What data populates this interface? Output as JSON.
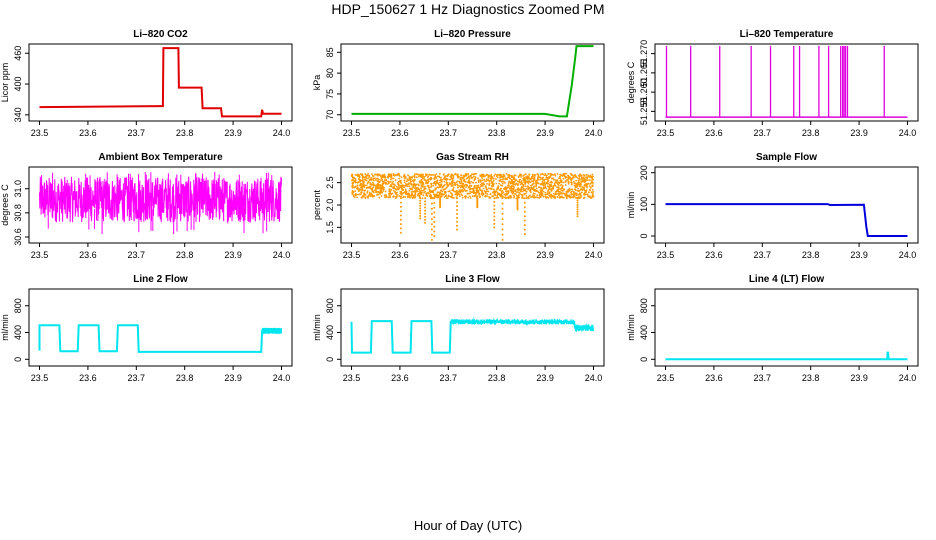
{
  "figure": {
    "title": "HDP_150627  1 Hz Diagnostics Zoomed PM",
    "xlabel": "Hour of Day (UTC)"
  },
  "chart_data": [
    {
      "type": "line",
      "title": "Li–820 CO2",
      "ylabel": "Licor ppm",
      "color": "#e00000",
      "xlim": [
        23.5,
        24.0
      ],
      "ylim": [
        328,
        478
      ],
      "xticks": [
        "23.5",
        "23.6",
        "23.7",
        "23.8",
        "23.9",
        "24.0"
      ],
      "yticks": [
        {
          "v": 340,
          "label": "340"
        },
        {
          "v": 400,
          "label": "400"
        },
        {
          "v": 460,
          "label": "460"
        }
      ],
      "x": [
        23.5,
        23.75,
        23.755,
        23.756,
        23.787,
        23.788,
        23.835,
        23.837,
        23.875,
        23.877,
        23.958,
        23.96,
        23.962,
        24.0
      ],
      "y": [
        355,
        357,
        357,
        470,
        470,
        393,
        393,
        353,
        353,
        337,
        337,
        350,
        342,
        342
      ]
    },
    {
      "type": "line",
      "title": "Li–820 Pressure",
      "ylabel": "kPa",
      "color": "#00b000",
      "xlim": [
        23.5,
        24.0
      ],
      "ylim": [
        68.5,
        87
      ],
      "xticks": [
        "23.5",
        "23.6",
        "23.7",
        "23.8",
        "23.9",
        "24.0"
      ],
      "yticks": [
        {
          "v": 70,
          "label": "70"
        },
        {
          "v": 75,
          "label": "75"
        },
        {
          "v": 80,
          "label": "80"
        },
        {
          "v": 85,
          "label": "85"
        }
      ],
      "x": [
        23.5,
        23.9,
        23.93,
        23.945,
        23.955,
        23.962,
        23.965,
        24.0
      ],
      "y": [
        70.2,
        70.2,
        69.6,
        69.6,
        77.0,
        83.5,
        86.5,
        86.5
      ]
    },
    {
      "type": "line",
      "title": "Li–820 Temperature",
      "ylabel": "degrees C",
      "color": "#e000e0",
      "xlim": [
        23.5,
        24.0
      ],
      "ylim": [
        51.2525,
        51.2725
      ],
      "xticks": [
        "23.5",
        "23.6",
        "23.7",
        "23.8",
        "23.9",
        "24.0"
      ],
      "yticks": [
        {
          "v": 51.255,
          "label": "51.255"
        },
        {
          "v": 51.26,
          "label": "51.260"
        },
        {
          "v": 51.265,
          "label": "51.265"
        },
        {
          "v": 51.27,
          "label": "51.270"
        }
      ],
      "baseline": 51.2535,
      "spike": 51.272,
      "spikes": [
        23.502,
        23.552,
        23.612,
        23.677,
        23.717,
        23.765,
        23.777,
        23.817,
        23.837,
        23.862,
        23.866,
        23.869,
        23.872,
        23.876,
        23.952
      ]
    },
    {
      "type": "line",
      "title": "Ambient Box Temperature",
      "ylabel": "degrees C",
      "color": "#ff00ff",
      "xlim": [
        23.5,
        24.0
      ],
      "ylim": [
        30.55,
        31.18
      ],
      "xticks": [
        "23.5",
        "23.6",
        "23.7",
        "23.8",
        "23.9",
        "24.0"
      ],
      "yticks": [
        {
          "v": 30.6,
          "label": "30.6"
        },
        {
          "v": 30.8,
          "label": "30.8"
        },
        {
          "v": 31.0,
          "label": "31.0"
        }
      ],
      "noise_center": 30.83,
      "noise_band": [
        30.72,
        31.1
      ],
      "noise_extremes": [
        30.62,
        31.14
      ]
    },
    {
      "type": "scatter",
      "title": "Gas Stream RH",
      "ylabel": "percent",
      "color": "#ff9900",
      "xlim": [
        23.5,
        24.0
      ],
      "ylim": [
        1.15,
        2.85
      ],
      "xticks": [
        "23.5",
        "23.6",
        "23.7",
        "23.8",
        "23.9",
        "24.0"
      ],
      "yticks": [
        {
          "v": 1.5,
          "label": "1.5"
        },
        {
          "v": 2.0,
          "label": "2.0"
        },
        {
          "v": 2.5,
          "label": "2.5"
        }
      ],
      "noise_band": [
        2.15,
        2.7
      ],
      "dips": [
        {
          "x": 23.602,
          "y": 1.38
        },
        {
          "x": 23.642,
          "y": 1.7
        },
        {
          "x": 23.652,
          "y": 1.6
        },
        {
          "x": 23.666,
          "y": 1.22
        },
        {
          "x": 23.671,
          "y": 1.3
        },
        {
          "x": 23.683,
          "y": 1.95
        },
        {
          "x": 23.718,
          "y": 1.45
        },
        {
          "x": 23.76,
          "y": 1.95
        },
        {
          "x": 23.795,
          "y": 1.5
        },
        {
          "x": 23.812,
          "y": 1.22
        },
        {
          "x": 23.843,
          "y": 1.9
        },
        {
          "x": 23.858,
          "y": 1.35
        },
        {
          "x": 23.967,
          "y": 1.75
        }
      ]
    },
    {
      "type": "line",
      "title": "Sample Flow",
      "ylabel": "ml/min",
      "color": "#0000dd",
      "xlim": [
        23.5,
        24.0
      ],
      "ylim": [
        -22,
        218
      ],
      "xticks": [
        "23.5",
        "23.6",
        "23.7",
        "23.8",
        "23.9",
        "24.0"
      ],
      "yticks": [
        {
          "v": 0,
          "label": "0"
        },
        {
          "v": 100,
          "label": "100"
        },
        {
          "v": 200,
          "label": "200"
        }
      ],
      "x": [
        23.5,
        23.835,
        23.84,
        23.91,
        23.915,
        23.918,
        24.0
      ],
      "y": [
        101,
        101,
        98,
        99,
        30,
        0,
        0
      ]
    },
    {
      "type": "line",
      "title": "Line 2 Flow",
      "ylabel": "ml/min",
      "color": "#00e5ee",
      "xlim": [
        23.5,
        24.0
      ],
      "ylim": [
        -100,
        1050
      ],
      "xticks": [
        "23.5",
        "23.6",
        "23.7",
        "23.8",
        "23.9",
        "24.0"
      ],
      "yticks": [
        {
          "v": 0,
          "label": "0"
        },
        {
          "v": 400,
          "label": "400"
        },
        {
          "v": 800,
          "label": "800"
        }
      ],
      "x": [
        23.5,
        23.5,
        23.541,
        23.543,
        23.579,
        23.581,
        23.622,
        23.624,
        23.66,
        23.662,
        23.703,
        23.705,
        23.958,
        23.96,
        24.0
      ],
      "y": [
        130,
        510,
        510,
        120,
        120,
        510,
        510,
        120,
        120,
        510,
        510,
        110,
        110,
        420,
        420
      ],
      "band_start": 23.96,
      "band": [
        380,
        470
      ]
    },
    {
      "type": "line",
      "title": "Line 3 Flow",
      "ylabel": "ml/min",
      "color": "#00e5ee",
      "xlim": [
        23.5,
        24.0
      ],
      "ylim": [
        -100,
        1050
      ],
      "xticks": [
        "23.5",
        "23.6",
        "23.7",
        "23.8",
        "23.9",
        "24.0"
      ],
      "yticks": [
        {
          "v": 0,
          "label": "0"
        },
        {
          "v": 400,
          "label": "400"
        },
        {
          "v": 800,
          "label": "800"
        }
      ],
      "x": [
        23.5,
        23.5,
        23.501,
        23.503,
        23.54,
        23.542,
        23.583,
        23.585,
        23.622,
        23.624,
        23.665,
        23.667,
        23.703,
        23.705,
        23.96,
        23.962,
        24.0
      ],
      "y": [
        560,
        560,
        100,
        100,
        100,
        570,
        570,
        100,
        100,
        570,
        570,
        100,
        100,
        560,
        560,
        470,
        470
      ],
      "band_start": 23.705,
      "band_end": 23.96,
      "band": [
        520,
        600
      ],
      "band2_start": 23.962,
      "band2": [
        420,
        520
      ]
    },
    {
      "type": "line",
      "title": "Line 4 (LT) Flow",
      "ylabel": "ml/min",
      "color": "#00e5ee",
      "xlim": [
        23.5,
        24.0
      ],
      "ylim": [
        -100,
        1050
      ],
      "xticks": [
        "23.5",
        "23.6",
        "23.7",
        "23.8",
        "23.9",
        "24.0"
      ],
      "yticks": [
        {
          "v": 0,
          "label": "0"
        },
        {
          "v": 400,
          "label": "400"
        },
        {
          "v": 800,
          "label": "800"
        }
      ],
      "x": [
        23.5,
        23.958,
        23.959,
        23.96,
        23.961,
        24.0
      ],
      "y": [
        0,
        0,
        100,
        100,
        0,
        0
      ]
    }
  ]
}
